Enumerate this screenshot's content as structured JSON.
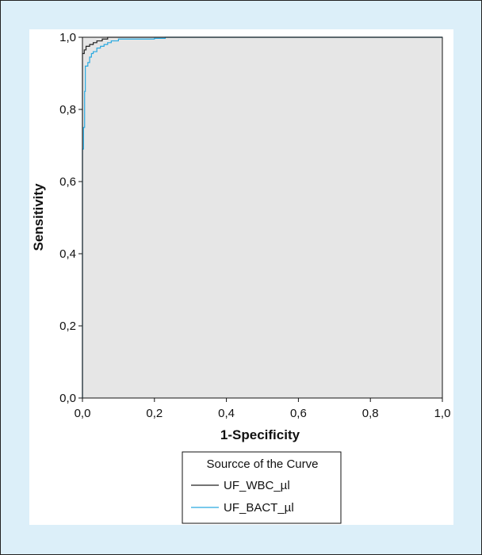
{
  "chart_data": {
    "type": "line",
    "xlabel": "1-Specificity",
    "ylabel": "Sensitivity",
    "xlim": [
      0,
      1
    ],
    "ylim": [
      0,
      1
    ],
    "x_ticks": [
      "0,0",
      "0,2",
      "0,4",
      "0,6",
      "0,8",
      "1,0"
    ],
    "y_ticks": [
      "0,0",
      "0,2",
      "0,4",
      "0,6",
      "0,8",
      "1,0"
    ],
    "plot_background": "#e6e6e6",
    "grid": false,
    "legend": {
      "title": "Sourcce of the Curve",
      "placement": "bottom-center"
    },
    "series": [
      {
        "name": "UF_WBC_µl",
        "color": "#222222",
        "points": [
          [
            0,
            0
          ],
          [
            0,
            0.955
          ],
          [
            0.005,
            0.955
          ],
          [
            0.005,
            0.965
          ],
          [
            0.01,
            0.965
          ],
          [
            0.01,
            0.975
          ],
          [
            0.02,
            0.975
          ],
          [
            0.02,
            0.98
          ],
          [
            0.03,
            0.98
          ],
          [
            0.03,
            0.985
          ],
          [
            0.04,
            0.985
          ],
          [
            0.04,
            0.99
          ],
          [
            0.055,
            0.99
          ],
          [
            0.055,
            0.995
          ],
          [
            0.07,
            0.995
          ],
          [
            0.07,
            1.0
          ],
          [
            1.0,
            1.0
          ]
        ]
      },
      {
        "name": "UF_BACT_µl",
        "color": "#29a9e0",
        "points": [
          [
            0,
            0
          ],
          [
            0,
            0.69
          ],
          [
            0.003,
            0.69
          ],
          [
            0.003,
            0.75
          ],
          [
            0.006,
            0.75
          ],
          [
            0.006,
            0.85
          ],
          [
            0.008,
            0.85
          ],
          [
            0.008,
            0.92
          ],
          [
            0.015,
            0.92
          ],
          [
            0.015,
            0.93
          ],
          [
            0.02,
            0.93
          ],
          [
            0.02,
            0.945
          ],
          [
            0.025,
            0.945
          ],
          [
            0.025,
            0.955
          ],
          [
            0.03,
            0.955
          ],
          [
            0.03,
            0.96
          ],
          [
            0.04,
            0.96
          ],
          [
            0.04,
            0.97
          ],
          [
            0.05,
            0.97
          ],
          [
            0.05,
            0.975
          ],
          [
            0.06,
            0.975
          ],
          [
            0.06,
            0.98
          ],
          [
            0.07,
            0.98
          ],
          [
            0.07,
            0.985
          ],
          [
            0.08,
            0.985
          ],
          [
            0.08,
            0.99
          ],
          [
            0.1,
            0.99
          ],
          [
            0.1,
            0.995
          ],
          [
            0.2,
            0.995
          ],
          [
            0.2,
            0.997
          ],
          [
            0.23,
            0.997
          ],
          [
            0.23,
            1.0
          ],
          [
            1.0,
            1.0
          ]
        ]
      }
    ]
  }
}
